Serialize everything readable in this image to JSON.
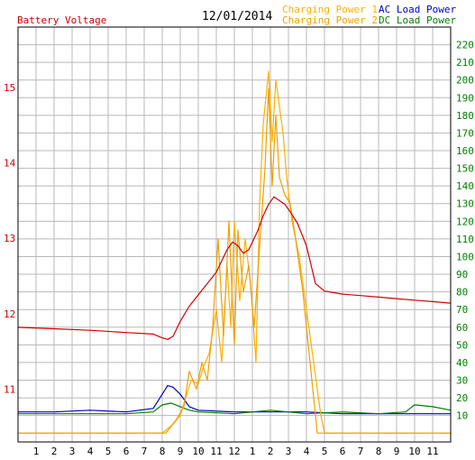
{
  "chart_data": {
    "type": "line",
    "title": "12/01/2014",
    "left_axis_title": "Battery Voltage",
    "left_axis": {
      "range": [
        10.3,
        15.8
      ],
      "ticks": [
        "11",
        "12",
        "13",
        "14",
        "15"
      ],
      "tick_values": [
        11,
        12,
        13,
        14,
        15
      ]
    },
    "right_axis": {
      "range": [
        -5,
        230
      ],
      "ticks": [
        "10",
        "20",
        "30",
        "40",
        "50",
        "60",
        "70",
        "80",
        "90",
        "100",
        "110",
        "120",
        "130",
        "140",
        "150",
        "160",
        "170",
        "180",
        "190",
        "200",
        "210",
        "220"
      ],
      "tick_values": [
        10,
        20,
        30,
        40,
        50,
        60,
        70,
        80,
        90,
        100,
        110,
        120,
        130,
        140,
        150,
        160,
        170,
        180,
        190,
        200,
        210,
        220
      ]
    },
    "x_axis": {
      "range": [
        0,
        24
      ],
      "tick_labels": [
        "1",
        "2",
        "3",
        "4",
        "5",
        "6",
        "7",
        "8",
        "9",
        "10",
        "11",
        "12",
        "1",
        "2",
        "3",
        "4",
        "5",
        "6",
        "7",
        "8",
        "9",
        "10",
        "11"
      ]
    },
    "grid": true,
    "legend": "top-right",
    "colors": {
      "voltage": "#d40000",
      "charging1": "#ffb000",
      "charging2": "#f0a000",
      "ac": "#0000c0",
      "dc": "#008000",
      "grid": "#b8b8b8",
      "left_ticks": "#cc0000",
      "right_ticks": "#008000"
    },
    "series": [
      {
        "name": "Battery Voltage",
        "axis": "left",
        "color": "#d40000",
        "x": [
          0,
          2,
          4,
          6,
          7.5,
          8,
          8.3,
          8.6,
          9,
          9.5,
          10,
          10.5,
          11,
          11.3,
          11.6,
          11.9,
          12.2,
          12.5,
          12.8,
          13,
          13.3,
          13.6,
          13.9,
          14.2,
          14.5,
          14.8,
          15.1,
          15.5,
          16,
          16.5,
          17,
          17.5,
          18,
          19,
          20,
          21,
          22,
          23,
          24
        ],
        "y": [
          11.82,
          11.8,
          11.78,
          11.75,
          11.73,
          11.68,
          11.66,
          11.7,
          11.9,
          12.1,
          12.25,
          12.4,
          12.55,
          12.7,
          12.85,
          12.95,
          12.9,
          12.8,
          12.85,
          12.95,
          13.1,
          13.3,
          13.45,
          13.55,
          13.5,
          13.45,
          13.35,
          13.2,
          12.9,
          12.4,
          12.3,
          12.28,
          12.26,
          12.24,
          12.22,
          12.2,
          12.18,
          12.16,
          12.14
        ]
      },
      {
        "name": "Charging Power 1",
        "axis": "right",
        "color": "#ffb000",
        "x": [
          0,
          8,
          8.6,
          9,
          9.3,
          9.6,
          10,
          10.3,
          10.6,
          11,
          11.3,
          11.6,
          11.8,
          12,
          12.3,
          12.6,
          12.9,
          13.2,
          13.4,
          13.6,
          13.9,
          14.1,
          14.3,
          14.5,
          14.7,
          14.9,
          15.2,
          15.6,
          16,
          16.4,
          16.8,
          17,
          24
        ],
        "y": [
          0,
          0,
          5,
          10,
          20,
          30,
          28,
          38,
          45,
          70,
          40,
          95,
          60,
          120,
          75,
          110,
          85,
          40,
          130,
          175,
          205,
          165,
          200,
          185,
          170,
          145,
          120,
          100,
          70,
          40,
          10,
          0,
          0
        ]
      },
      {
        "name": "Charging Power 2",
        "axis": "right",
        "color": "#f0a000",
        "x": [
          0,
          8.2,
          8.8,
          9.2,
          9.5,
          9.9,
          10.2,
          10.5,
          10.8,
          11.1,
          11.4,
          11.7,
          12,
          12.2,
          12.5,
          12.8,
          13.1,
          13.3,
          13.5,
          13.7,
          13.9,
          14.1,
          14.3,
          14.5,
          14.8,
          15.1,
          15.4,
          15.8,
          16.1,
          16.4,
          16.6,
          24
        ],
        "y": [
          0,
          0,
          8,
          15,
          35,
          25,
          40,
          30,
          60,
          110,
          55,
          120,
          50,
          115,
          80,
          95,
          60,
          90,
          120,
          150,
          195,
          140,
          180,
          145,
          135,
          130,
          110,
          80,
          50,
          20,
          0,
          0
        ]
      },
      {
        "name": "AC Load Power",
        "axis": "right",
        "color": "#0000c0",
        "x": [
          0,
          2,
          4,
          6,
          7.5,
          8,
          8.3,
          8.6,
          9,
          9.5,
          10,
          12,
          14,
          16,
          18,
          20,
          22,
          24
        ],
        "y": [
          12,
          12,
          13,
          12,
          14,
          22,
          27,
          26,
          22,
          15,
          13,
          12,
          12,
          12,
          11,
          11,
          11,
          11
        ]
      },
      {
        "name": "DC Load Power",
        "axis": "right",
        "color": "#008000",
        "x": [
          0,
          2,
          4,
          6,
          7.5,
          8,
          8.5,
          9,
          9.5,
          10,
          12,
          14,
          16,
          18,
          20,
          21.5,
          22,
          23,
          24
        ],
        "y": [
          11,
          11,
          11,
          11,
          12,
          16,
          17,
          15,
          13,
          12,
          11,
          13,
          11,
          12,
          11,
          12,
          16,
          15,
          13
        ]
      }
    ]
  }
}
